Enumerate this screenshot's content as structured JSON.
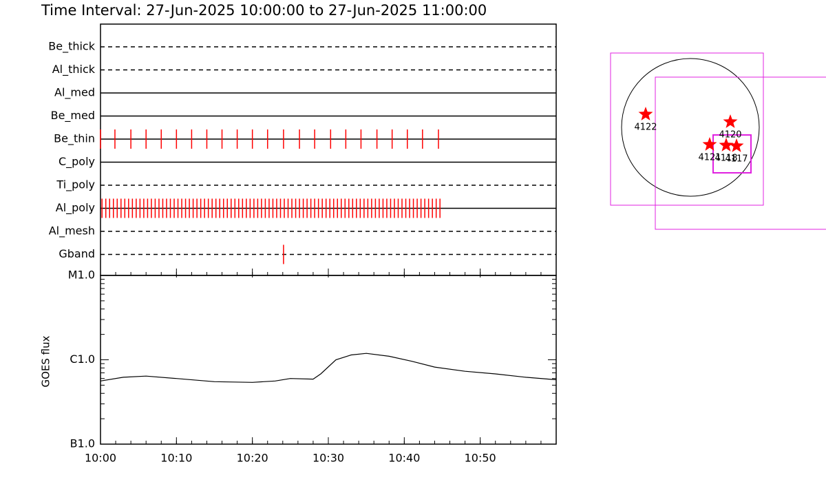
{
  "chart_data": [
    {
      "type": "timeline",
      "title": "Time Interval: 27-Jun-2025 10:00:00 to 27-Jun-2025 11:00:00",
      "xlim": [
        0,
        60
      ],
      "rows": [
        {
          "name": "Be_thick",
          "style": "dashed",
          "events": []
        },
        {
          "name": "Al_thick",
          "style": "dashed",
          "events": []
        },
        {
          "name": "Al_med",
          "style": "solid",
          "events": []
        },
        {
          "name": "Be_med",
          "style": "solid",
          "events": []
        },
        {
          "name": "Be_thin",
          "style": "solid",
          "events": [
            0,
            1.9,
            4,
            6,
            8,
            10,
            12,
            14,
            16,
            18,
            20,
            22,
            24.1,
            26.2,
            28.2,
            30.3,
            32.3,
            34.3,
            36.4,
            38.4,
            40.4,
            42.4,
            44.5
          ]
        },
        {
          "name": "C_poly",
          "style": "solid",
          "events": []
        },
        {
          "name": "Ti_poly",
          "style": "dashed",
          "events": []
        },
        {
          "name": "Al_poly",
          "style": "solid",
          "events": [
            0.2,
            0.7,
            1.2,
            1.7,
            2.2,
            2.7,
            3.2,
            3.7,
            4.2,
            4.7,
            5.2,
            5.7,
            6.2,
            6.7,
            7.2,
            7.7,
            8.2,
            8.7,
            9.2,
            9.7,
            10.2,
            10.7,
            11.2,
            11.7,
            12.2,
            12.7,
            13.2,
            13.7,
            14.2,
            14.7,
            15.2,
            15.7,
            16.2,
            16.7,
            17.2,
            17.7,
            18.2,
            18.7,
            19.2,
            19.7,
            20.2,
            20.7,
            21.2,
            21.7,
            22.2,
            22.7,
            23.2,
            23.7,
            24.2,
            24.7,
            25.2,
            25.7,
            26.2,
            26.7,
            27.2,
            27.7,
            28.2,
            28.7,
            29.2,
            29.7,
            30.2,
            30.7,
            31.2,
            31.7,
            32.2,
            32.7,
            33.2,
            33.7,
            34.2,
            34.7,
            35.2,
            35.7,
            36.2,
            36.7,
            37.2,
            37.7,
            38.2,
            38.7,
            39.2,
            39.7,
            40.2,
            40.7,
            41.2,
            41.7,
            42.2,
            42.7,
            43.2,
            43.7,
            44.2,
            44.7
          ]
        },
        {
          "name": "Al_mesh",
          "style": "dashed",
          "events": []
        },
        {
          "name": "Gband",
          "style": "dashed",
          "events": [
            24.1
          ]
        }
      ],
      "color": "#ff0000"
    },
    {
      "type": "line",
      "ylabel": "GOES flux",
      "log": true,
      "x": [
        0,
        3,
        6,
        10,
        15,
        20,
        23,
        25,
        28,
        29,
        31,
        33,
        35,
        38,
        41,
        44,
        48,
        52,
        56,
        60
      ],
      "values": [
        5.6e-07,
        6.2e-07,
        6.4e-07,
        6e-07,
        5.5e-07,
        5.4e-07,
        5.6e-07,
        6e-07,
        5.9e-07,
        6.8e-07,
        1e-06,
        1.14e-06,
        1.19e-06,
        1.1e-06,
        9.6e-07,
        8.2e-07,
        7.3e-07,
        6.8e-07,
        6.2e-07,
        5.8e-07
      ],
      "xlim": [
        0,
        60
      ],
      "xticks": [
        {
          "value": 0,
          "label": "10:00"
        },
        {
          "value": 10,
          "label": "10:10"
        },
        {
          "value": 20,
          "label": "10:20"
        },
        {
          "value": 30,
          "label": "10:30"
        },
        {
          "value": 40,
          "label": "10:40"
        },
        {
          "value": 50,
          "label": "10:50"
        }
      ],
      "ylim": [
        1e-07,
        1e-05
      ],
      "yticks": [
        {
          "value": 1e-07,
          "label": "B1.0"
        },
        {
          "value": 1e-06,
          "label": "C1.0"
        },
        {
          "value": 1e-05,
          "label": "M1.0"
        }
      ],
      "color": "#000000"
    },
    {
      "type": "map",
      "regions": [
        {
          "label": "4122"
        },
        {
          "label": "4120"
        },
        {
          "label": "4121"
        },
        {
          "label": "4118"
        },
        {
          "label": "4117"
        }
      ],
      "color": "#ff0000"
    }
  ]
}
